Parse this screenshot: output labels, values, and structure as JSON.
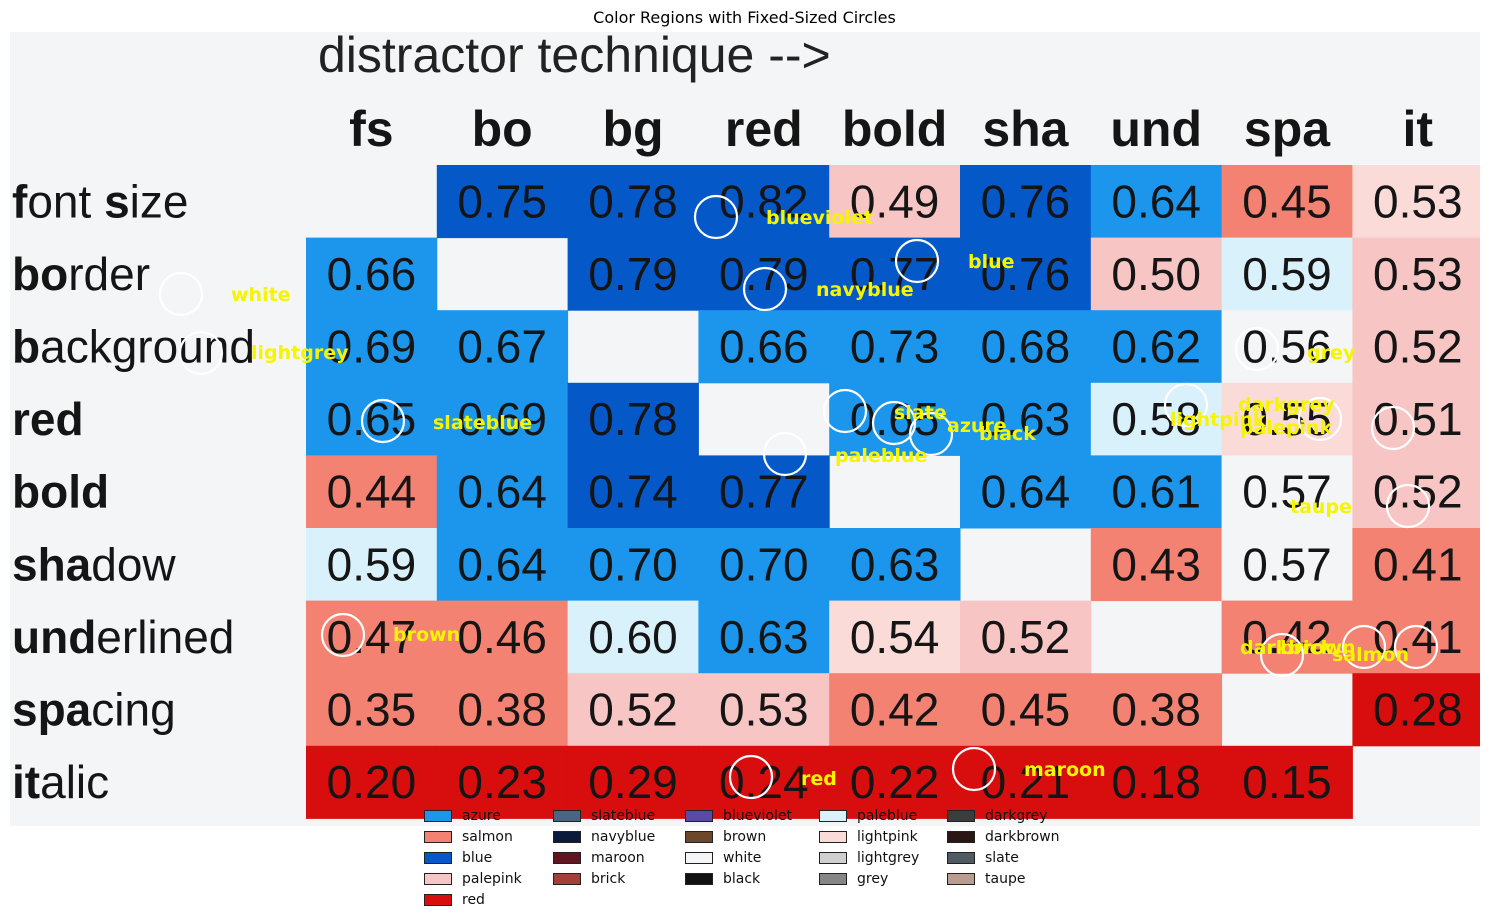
{
  "chart_data": {
    "type": "heatmap",
    "title": "Color Regions with Fixed-Sized Circles",
    "image_text": {
      "header": "distractor technique -->",
      "columns": [
        "fs",
        "bo",
        "bg",
        "red",
        "bold",
        "sha",
        "und",
        "spa",
        "it"
      ],
      "rows": [
        {
          "label": "font size",
          "bold_part": "f",
          "rest_part": "ont size",
          "bold_part2": "s",
          "rest_part2": "ize"
        },
        {
          "label": "border",
          "bold_part": "bo",
          "rest_part": "rder"
        },
        {
          "label": "background",
          "bold_part": "b",
          "rest_part": "ackground"
        },
        {
          "label": "red",
          "bold_part": "red",
          "rest_part": ""
        },
        {
          "label": "bold",
          "bold_part": "bold",
          "rest_part": ""
        },
        {
          "label": "shadow",
          "bold_part": "sha",
          "rest_part": "dow"
        },
        {
          "label": "underlined",
          "bold_part": "und",
          "rest_part": "erlined"
        },
        {
          "label": "spacing",
          "bold_part": "spa",
          "rest_part": "cing"
        },
        {
          "label": "italic",
          "bold_part": "it",
          "rest_part": "alic"
        }
      ],
      "values": [
        [
          null,
          "0.75",
          "0.78",
          "0.82",
          "0.49",
          "0.76",
          "0.64",
          "0.45",
          "0.53"
        ],
        [
          "0.66",
          null,
          "0.79",
          "0.79",
          "0.77",
          "0.76",
          "0.50",
          "0.59",
          "0.53"
        ],
        [
          "0.69",
          "0.67",
          null,
          "0.66",
          "0.73",
          "0.68",
          "0.62",
          "0.56",
          "0.52"
        ],
        [
          "0.65",
          "0.69",
          "0.78",
          null,
          "0.65",
          "0.63",
          "0.58",
          "0.55",
          "0.51"
        ],
        [
          "0.44",
          "0.64",
          "0.74",
          "0.77",
          null,
          "0.64",
          "0.61",
          "0.57",
          "0.52"
        ],
        [
          "0.59",
          "0.64",
          "0.70",
          "0.70",
          "0.63",
          null,
          "0.43",
          "0.57",
          "0.41"
        ],
        [
          "0.47",
          "0.46",
          "0.60",
          "0.63",
          "0.54",
          "0.52",
          null,
          "0.42",
          "0.41"
        ],
        [
          "0.35",
          "0.38",
          "0.52",
          "0.53",
          "0.42",
          "0.45",
          "0.38",
          null,
          "0.28"
        ],
        [
          "0.20",
          "0.23",
          "0.29",
          "0.24",
          "0.22",
          "0.21",
          "0.18",
          "0.15",
          null
        ]
      ]
    },
    "cell_color_names": [
      [
        null,
        "blue",
        "blue",
        "blue",
        "palepink",
        "blue",
        "azure",
        "salmon",
        "lightpink"
      ],
      [
        "azure",
        null,
        "blue",
        "blue",
        "blue",
        "blue",
        "palepink",
        "paleblue",
        "palepink"
      ],
      [
        "azure",
        "azure",
        null,
        "azure",
        "azure",
        "azure",
        "azure",
        "white",
        "palepink"
      ],
      [
        "azure",
        "azure",
        "blue",
        null,
        "azure",
        "azure",
        "paleblue",
        "lightpink",
        "palepink"
      ],
      [
        "salmon",
        "azure",
        "blue",
        "blue",
        null,
        "azure",
        "azure",
        "white",
        "palepink"
      ],
      [
        "paleblue",
        "azure",
        "azure",
        "azure",
        "azure",
        null,
        "salmon",
        "white",
        "salmon"
      ],
      [
        "salmon",
        "salmon",
        "paleblue",
        "azure",
        "lightpink",
        "palepink",
        null,
        "salmon",
        "salmon"
      ],
      [
        "salmon",
        "salmon",
        "palepink",
        "palepink",
        "salmon",
        "salmon",
        "salmon",
        null,
        "red"
      ],
      [
        "red",
        "red",
        "red",
        "red",
        "red",
        "red",
        "red",
        "red",
        null
      ]
    ],
    "annotations": [
      {
        "label": "blueviolet"
      },
      {
        "label": "blue"
      },
      {
        "label": "navyblue"
      },
      {
        "label": "white"
      },
      {
        "label": "lightgrey"
      },
      {
        "label": "grey"
      },
      {
        "label": "slateblue"
      },
      {
        "label": "slate"
      },
      {
        "label": "azure"
      },
      {
        "label": "black"
      },
      {
        "label": "paleblue"
      },
      {
        "label": "lightpink"
      },
      {
        "label": "darkgrey"
      },
      {
        "label": "palepink"
      },
      {
        "label": "taupe"
      },
      {
        "label": "brown"
      },
      {
        "label": "darkbrown"
      },
      {
        "label": "brick"
      },
      {
        "label": "salmon"
      },
      {
        "label": "red"
      },
      {
        "label": "maroon"
      }
    ],
    "legend": {
      "placement": "bottom-center",
      "entries": [
        {
          "label": "azure",
          "color": "#1b96ec"
        },
        {
          "label": "salmon",
          "color": "#f48272"
        },
        {
          "label": "blue",
          "color": "#0558c8"
        },
        {
          "label": "palepink",
          "color": "#f7c6c4"
        },
        {
          "label": "red",
          "color": "#d80d0e"
        },
        {
          "label": "slateblue",
          "color": "#4a6584"
        },
        {
          "label": "navyblue",
          "color": "#0b1a3c"
        },
        {
          "label": "maroon",
          "color": "#621520"
        },
        {
          "label": "brick",
          "color": "#a2413c"
        },
        {
          "label": "blueviolet",
          "color": "#5a4aa8"
        },
        {
          "label": "brown",
          "color": "#6b472c"
        },
        {
          "label": "white",
          "color": "#f4f5f7"
        },
        {
          "label": "black",
          "color": "#111111"
        },
        {
          "label": "paleblue",
          "color": "#d9f1fb"
        },
        {
          "label": "lightpink",
          "color": "#fadbd8"
        },
        {
          "label": "lightgrey",
          "color": "#cfcfcf"
        },
        {
          "label": "grey",
          "color": "#868686"
        },
        {
          "label": "darkgrey",
          "color": "#3c3c3c"
        },
        {
          "label": "darkbrown",
          "color": "#2a1714"
        },
        {
          "label": "slate",
          "color": "#4f5a63"
        },
        {
          "label": "taupe",
          "color": "#b89d90"
        }
      ]
    }
  },
  "colors": {
    "background": "#f4f5f7",
    "annotation_text": "#f5f500",
    "circle_stroke": "#ffffff"
  }
}
